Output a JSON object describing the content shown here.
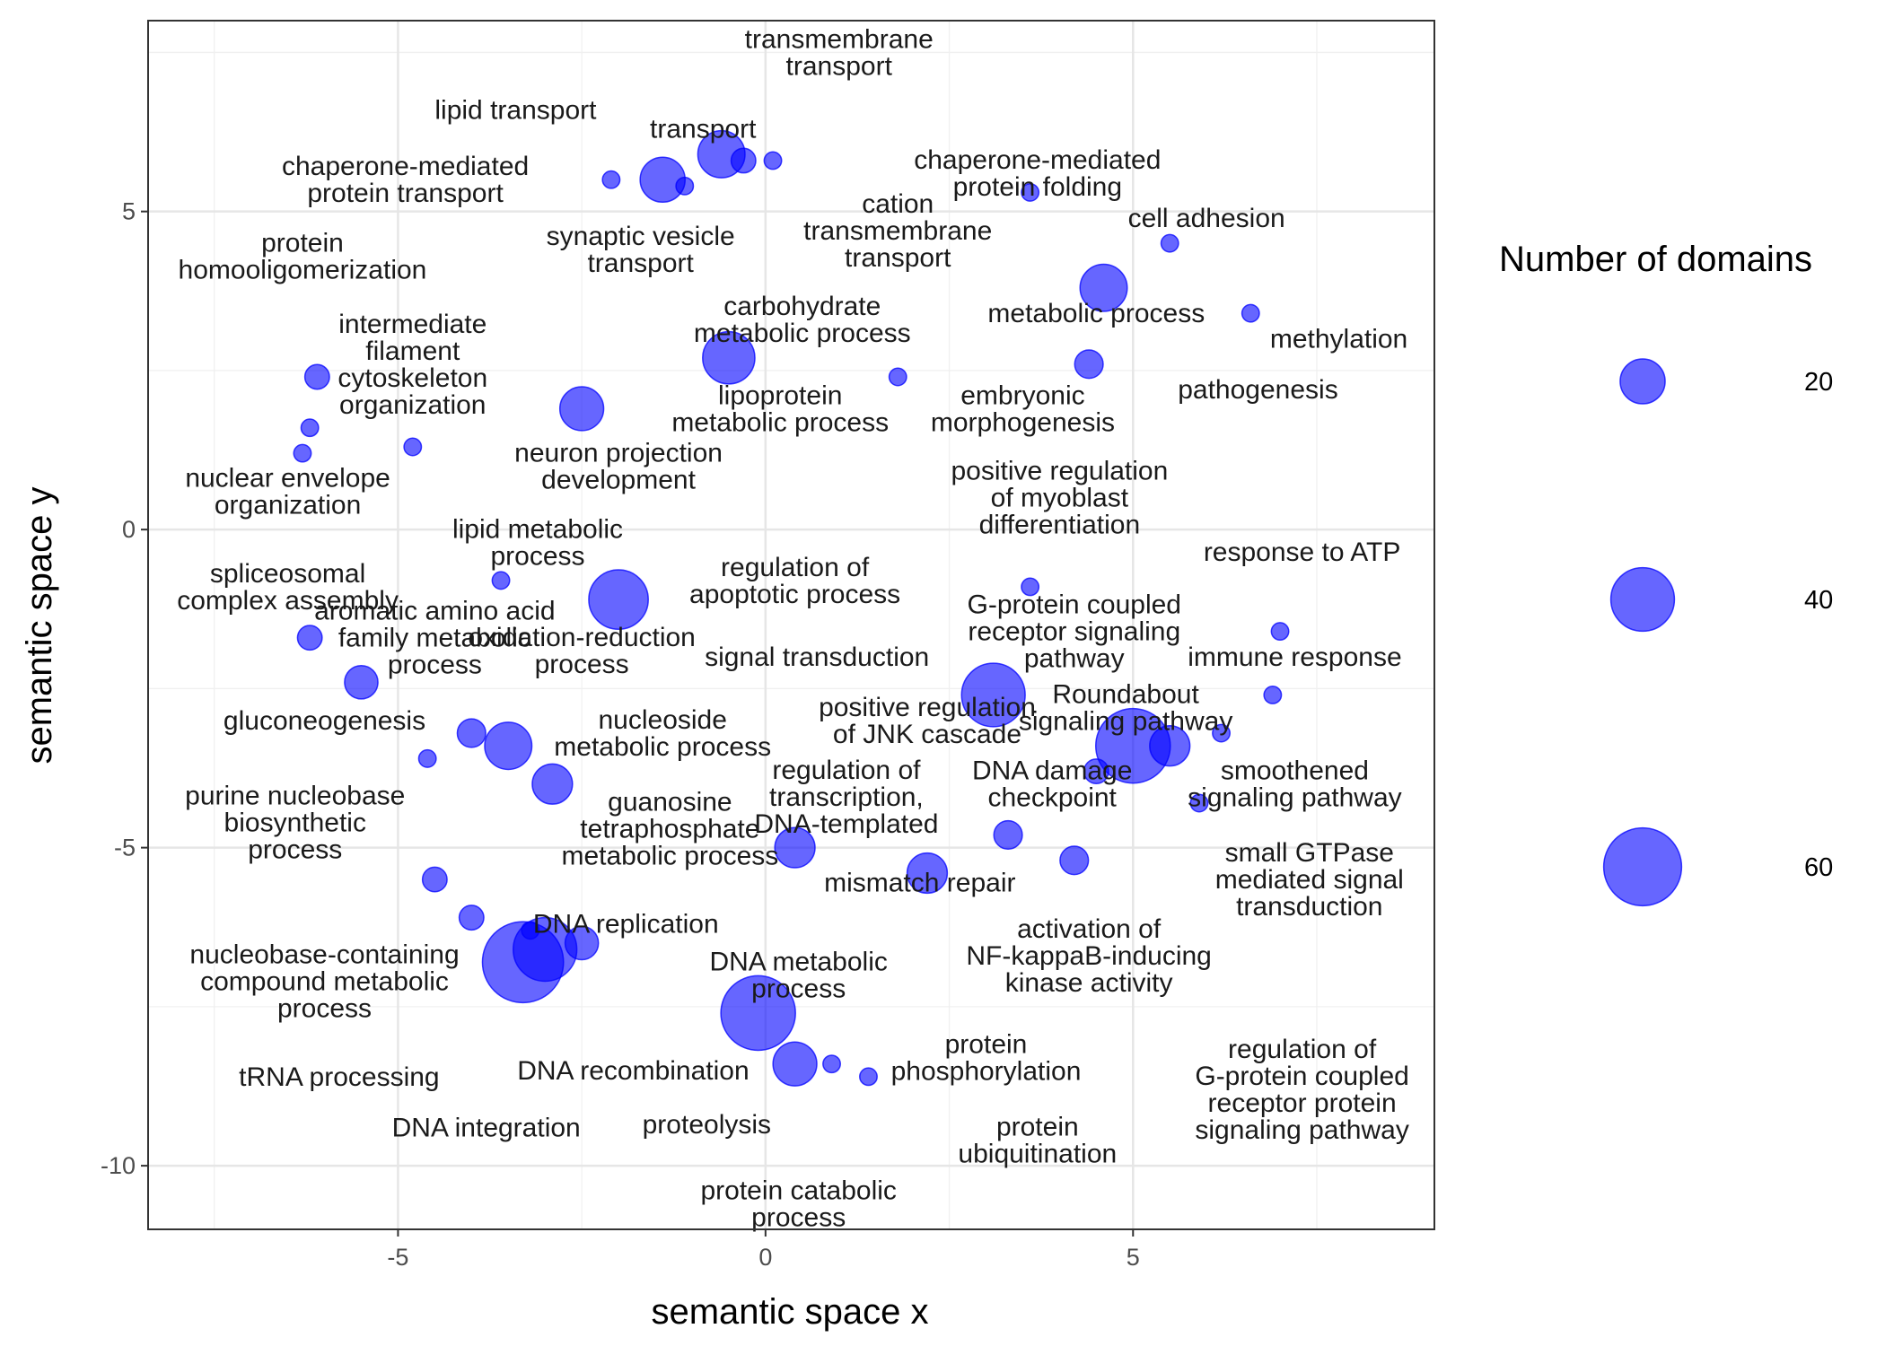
{
  "chart_data": {
    "type": "scatter",
    "xlabel": "semantic space x",
    "ylabel": "semantic space y",
    "xlim": [
      -8.4,
      9.1
    ],
    "ylim": [
      -11.0,
      8.0
    ],
    "xticks": [
      -5,
      0,
      5
    ],
    "yticks": [
      5,
      0,
      -5,
      -10
    ],
    "xtick_labels": [
      "-5",
      "0",
      "5"
    ],
    "ytick_labels": [
      "5",
      "0",
      "-5",
      "-10"
    ],
    "grid": true,
    "color": "#0000ff",
    "legend": {
      "title": "Number of domains",
      "position": "right",
      "values": [
        20,
        40,
        60
      ],
      "labels": [
        "20",
        "40",
        "60"
      ]
    },
    "points": [
      {
        "x": -0.6,
        "y": 5.9,
        "size": 22
      },
      {
        "x": -1.4,
        "y": 5.5,
        "size": 20
      },
      {
        "x": -0.3,
        "y": 5.8,
        "size": 6
      },
      {
        "x": 0.1,
        "y": 5.8,
        "size": 3
      },
      {
        "x": -2.1,
        "y": 5.5,
        "size": 3
      },
      {
        "x": -1.1,
        "y": 5.4,
        "size": 3
      },
      {
        "x": 3.6,
        "y": 5.3,
        "size": 3
      },
      {
        "x": 4.6,
        "y": 3.8,
        "size": 22
      },
      {
        "x": 5.5,
        "y": 4.5,
        "size": 3
      },
      {
        "x": 6.6,
        "y": 3.4,
        "size": 3
      },
      {
        "x": -0.5,
        "y": 2.7,
        "size": 27
      },
      {
        "x": 1.8,
        "y": 2.4,
        "size": 3
      },
      {
        "x": 4.4,
        "y": 2.6,
        "size": 8
      },
      {
        "x": -2.5,
        "y": 1.9,
        "size": 19
      },
      {
        "x": -6.1,
        "y": 2.4,
        "size": 6
      },
      {
        "x": -6.2,
        "y": 1.6,
        "size": 3
      },
      {
        "x": -6.3,
        "y": 1.2,
        "size": 3
      },
      {
        "x": -4.8,
        "y": 1.3,
        "size": 3
      },
      {
        "x": -2.0,
        "y": -1.1,
        "size": 35
      },
      {
        "x": -3.6,
        "y": -0.8,
        "size": 3
      },
      {
        "x": 3.6,
        "y": -0.9,
        "size": 3
      },
      {
        "x": 7.0,
        "y": -1.6,
        "size": 3
      },
      {
        "x": -6.2,
        "y": -1.7,
        "size": 6
      },
      {
        "x": -5.5,
        "y": -2.4,
        "size": 11
      },
      {
        "x": 3.1,
        "y": -2.6,
        "size": 40
      },
      {
        "x": 5.0,
        "y": -3.4,
        "size": 55
      },
      {
        "x": 5.5,
        "y": -3.4,
        "size": 16
      },
      {
        "x": 6.2,
        "y": -3.2,
        "size": 3
      },
      {
        "x": 6.9,
        "y": -2.6,
        "size": 3
      },
      {
        "x": -3.5,
        "y": -3.4,
        "size": 22
      },
      {
        "x": -4.0,
        "y": -3.2,
        "size": 8
      },
      {
        "x": -2.9,
        "y": -4.0,
        "size": 16
      },
      {
        "x": -4.6,
        "y": -3.6,
        "size": 3
      },
      {
        "x": 4.5,
        "y": -3.8,
        "size": 6
      },
      {
        "x": 5.9,
        "y": -4.3,
        "size": 3
      },
      {
        "x": 0.4,
        "y": -5.0,
        "size": 16
      },
      {
        "x": 2.2,
        "y": -5.4,
        "size": 16
      },
      {
        "x": 3.3,
        "y": -4.8,
        "size": 8
      },
      {
        "x": 4.2,
        "y": -5.2,
        "size": 8
      },
      {
        "x": -3.3,
        "y": -6.8,
        "size": 65
      },
      {
        "x": -3.0,
        "y": -6.6,
        "size": 40
      },
      {
        "x": -4.5,
        "y": -5.5,
        "size": 6
      },
      {
        "x": -4.0,
        "y": -6.1,
        "size": 6
      },
      {
        "x": -3.2,
        "y": -6.3,
        "size": 3
      },
      {
        "x": -2.5,
        "y": -6.5,
        "size": 11
      },
      {
        "x": -0.1,
        "y": -7.6,
        "size": 55
      },
      {
        "x": 0.4,
        "y": -8.4,
        "size": 19
      },
      {
        "x": 0.9,
        "y": -8.4,
        "size": 3
      },
      {
        "x": 1.4,
        "y": -8.6,
        "size": 3
      }
    ],
    "annotations": [
      {
        "lines": [
          "transmembrane",
          "transport"
        ],
        "x": 1.0,
        "y": 7.5
      },
      {
        "lines": [
          "lipid transport"
        ],
        "x": -3.4,
        "y": 6.6
      },
      {
        "lines": [
          "transport"
        ],
        "x": -0.85,
        "y": 6.3
      },
      {
        "lines": [
          "chaperone-mediated",
          "protein folding"
        ],
        "x": 3.7,
        "y": 5.6
      },
      {
        "lines": [
          "chaperone-mediated",
          "protein transport"
        ],
        "x": -4.9,
        "y": 5.5
      },
      {
        "lines": [
          "cation",
          "transmembrane",
          "transport"
        ],
        "x": 1.8,
        "y": 4.7
      },
      {
        "lines": [
          "synaptic vesicle",
          "transport"
        ],
        "x": -1.7,
        "y": 4.4
      },
      {
        "lines": [
          "cell adhesion"
        ],
        "x": 6.0,
        "y": 4.9
      },
      {
        "lines": [
          "protein",
          "homooligomerization"
        ],
        "x": -6.3,
        "y": 4.3
      },
      {
        "lines": [
          "carbohydrate",
          "metabolic process"
        ],
        "x": 0.5,
        "y": 3.3
      },
      {
        "lines": [
          "metabolic process"
        ],
        "x": 4.5,
        "y": 3.4
      },
      {
        "lines": [
          "methylation"
        ],
        "x": 7.8,
        "y": 3.0
      },
      {
        "lines": [
          "intermediate",
          "filament",
          "cytoskeleton",
          "organization"
        ],
        "x": -4.8,
        "y": 2.6
      },
      {
        "lines": [
          "pathogenesis"
        ],
        "x": 6.7,
        "y": 2.2
      },
      {
        "lines": [
          "lipoprotein",
          "metabolic process"
        ],
        "x": 0.2,
        "y": 1.9
      },
      {
        "lines": [
          "embryonic",
          "morphogenesis"
        ],
        "x": 3.5,
        "y": 1.9
      },
      {
        "lines": [
          "neuron projection",
          "development"
        ],
        "x": -2.0,
        "y": 1.0
      },
      {
        "lines": [
          "positive regulation",
          "of myoblast",
          "differentiation"
        ],
        "x": 4.0,
        "y": 0.5
      },
      {
        "lines": [
          "nuclear envelope",
          "organization"
        ],
        "x": -6.5,
        "y": 0.6
      },
      {
        "lines": [
          "lipid metabolic",
          "process"
        ],
        "x": -3.1,
        "y": -0.2
      },
      {
        "lines": [
          "response to ATP"
        ],
        "x": 7.3,
        "y": -0.35
      },
      {
        "lines": [
          "regulation of",
          "apoptotic process"
        ],
        "x": 0.4,
        "y": -0.8
      },
      {
        "lines": [
          "spliceosomal",
          "complex assembly"
        ],
        "x": -6.5,
        "y": -0.9
      },
      {
        "lines": [
          "G-protein coupled",
          "receptor signaling",
          "pathway"
        ],
        "x": 4.2,
        "y": -1.6
      },
      {
        "lines": [
          "aromatic amino acid",
          "family metabolic",
          "process"
        ],
        "x": -4.5,
        "y": -1.7
      },
      {
        "lines": [
          "oxidation-reduction",
          "process"
        ],
        "x": -2.5,
        "y": -1.9
      },
      {
        "lines": [
          "signal transduction"
        ],
        "x": 0.7,
        "y": -2.0
      },
      {
        "lines": [
          "immune response"
        ],
        "x": 7.2,
        "y": -2.0
      },
      {
        "lines": [
          "Roundabout",
          "signaling pathway"
        ],
        "x": 4.9,
        "y": -2.8
      },
      {
        "lines": [
          "positive regulation",
          "of JNK cascade"
        ],
        "x": 2.2,
        "y": -3.0
      },
      {
        "lines": [
          "gluconeogenesis"
        ],
        "x": -6.0,
        "y": -3.0
      },
      {
        "lines": [
          "nucleoside",
          "metabolic process"
        ],
        "x": -1.4,
        "y": -3.2
      },
      {
        "lines": [
          "DNA damage",
          "checkpoint"
        ],
        "x": 3.9,
        "y": -4.0
      },
      {
        "lines": [
          "smoothened",
          "signaling pathway"
        ],
        "x": 7.2,
        "y": -4.0
      },
      {
        "lines": [
          "regulation of",
          "transcription,",
          "DNA-templated"
        ],
        "x": 1.1,
        "y": -4.2
      },
      {
        "lines": [
          "purine nucleobase",
          "biosynthetic",
          "process"
        ],
        "x": -6.4,
        "y": -4.6
      },
      {
        "lines": [
          "guanosine",
          "tetraphosphate",
          "metabolic process"
        ],
        "x": -1.3,
        "y": -4.7
      },
      {
        "lines": [
          "small GTPase",
          "mediated signal",
          "transduction"
        ],
        "x": 7.4,
        "y": -5.5
      },
      {
        "lines": [
          "mismatch repair"
        ],
        "x": 2.1,
        "y": -5.55
      },
      {
        "lines": [
          "DNA replication"
        ],
        "x": -1.9,
        "y": -6.2
      },
      {
        "lines": [
          "activation of",
          "NF-kappaB-inducing",
          "kinase activity"
        ],
        "x": 4.4,
        "y": -6.7
      },
      {
        "lines": [
          "nucleobase-containing",
          "compound metabolic",
          "process"
        ],
        "x": -6.0,
        "y": -7.1
      },
      {
        "lines": [
          "DNA metabolic",
          "process"
        ],
        "x": 0.45,
        "y": -7.0
      },
      {
        "lines": [
          "protein",
          "phosphorylation"
        ],
        "x": 3.0,
        "y": -8.3
      },
      {
        "lines": [
          "regulation of",
          "G-protein coupled",
          "receptor protein",
          "signaling pathway"
        ],
        "x": 7.3,
        "y": -8.8
      },
      {
        "lines": [
          "tRNA processing"
        ],
        "x": -5.8,
        "y": -8.6
      },
      {
        "lines": [
          "DNA recombination"
        ],
        "x": -1.8,
        "y": -8.5
      },
      {
        "lines": [
          "DNA integration"
        ],
        "x": -3.8,
        "y": -9.4
      },
      {
        "lines": [
          "proteolysis"
        ],
        "x": -0.8,
        "y": -9.35
      },
      {
        "lines": [
          "protein",
          "ubiquitination"
        ],
        "x": 3.7,
        "y": -9.6
      },
      {
        "lines": [
          "protein catabolic",
          "process"
        ],
        "x": 0.45,
        "y": -10.6
      }
    ]
  }
}
